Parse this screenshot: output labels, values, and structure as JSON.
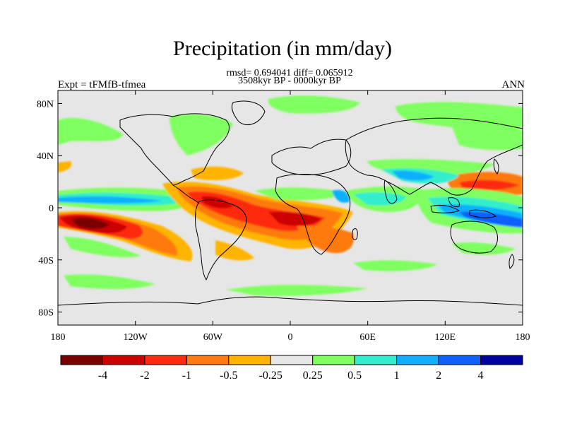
{
  "title": "Precipitation (in mm/day)",
  "stats_text": "rmsd= 0.694041  diff= 0.065912",
  "period_text": "3508kyr BP - 0000kyr BP",
  "expt_label": "Expt = tFMfB-tfmea",
  "season_label": "ANN",
  "map": {
    "lon_range": [
      -180,
      180
    ],
    "lat_range": [
      -90,
      90
    ],
    "lat_ticks": [
      {
        "value": 80,
        "label": "80N"
      },
      {
        "value": 40,
        "label": "40N"
      },
      {
        "value": 0,
        "label": "0"
      },
      {
        "value": -40,
        "label": "40S"
      },
      {
        "value": -80,
        "label": "80S"
      }
    ],
    "lon_ticks": [
      {
        "value": -180,
        "label": "180"
      },
      {
        "value": -120,
        "label": "120W"
      },
      {
        "value": -60,
        "label": "60W"
      },
      {
        "value": 0,
        "label": "0"
      },
      {
        "value": 60,
        "label": "60E"
      },
      {
        "value": 120,
        "label": "120E"
      },
      {
        "value": 180,
        "label": "180"
      }
    ],
    "background_color": "#e6e6e6"
  },
  "colorbar": {
    "colors": [
      "#7a0000",
      "#cc0000",
      "#ff2a10",
      "#ff7a10",
      "#ffb400",
      "#e6e6e6",
      "#80ff60",
      "#33eecc",
      "#10b0ff",
      "#1060ff",
      "#0000a0"
    ],
    "labels": [
      "-4",
      "-2",
      "-1",
      "-0.5",
      "-0.25",
      "0.25",
      "0.5",
      "1",
      "2",
      "4"
    ]
  }
}
